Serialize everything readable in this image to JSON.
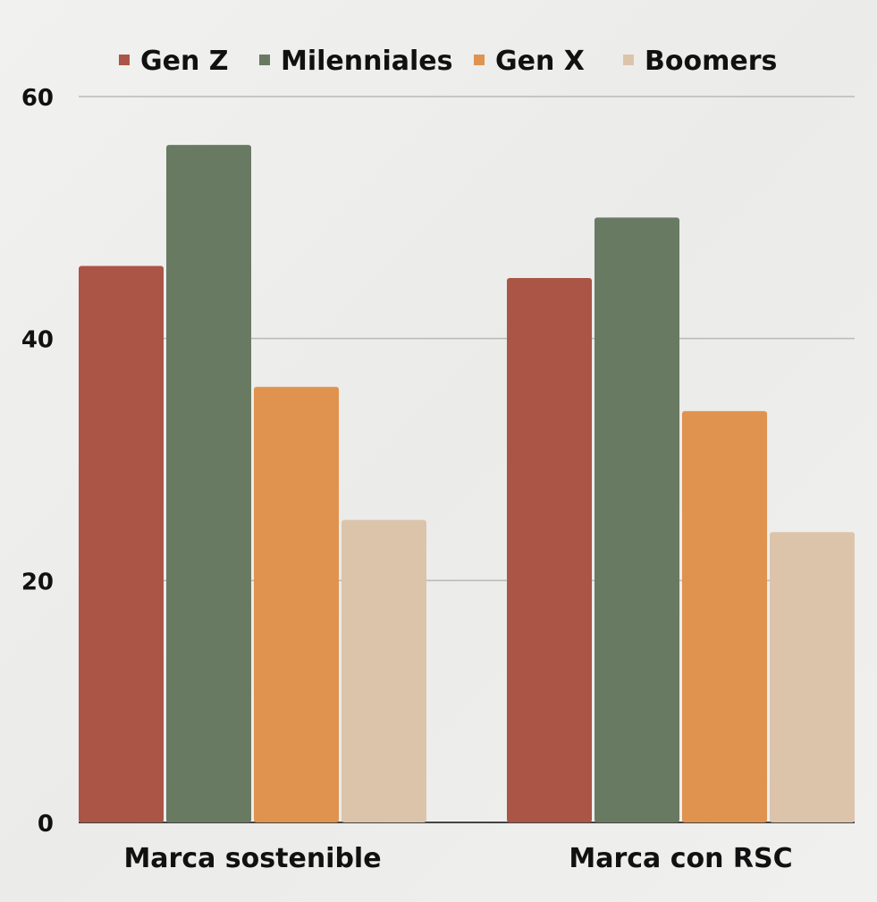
{
  "chart_data": {
    "type": "bar",
    "title": "",
    "xlabel": "",
    "ylabel": "",
    "categories": [
      "Marca sostenible",
      "Marca con RSC"
    ],
    "series": [
      {
        "name": "Gen Z",
        "color": "#aa5546",
        "values": [
          46,
          45
        ]
      },
      {
        "name": "Milenniales",
        "color": "#697a63",
        "values": [
          56,
          50
        ]
      },
      {
        "name": "Gen X",
        "color": "#e0934f",
        "values": [
          36,
          34
        ]
      },
      {
        "name": "Boomers",
        "color": "#dcc4ab",
        "values": [
          25,
          24
        ]
      }
    ],
    "ylim": [
      0,
      60
    ],
    "yticks": [
      0,
      20,
      40,
      60
    ],
    "grid": true,
    "legend_position": "top"
  }
}
